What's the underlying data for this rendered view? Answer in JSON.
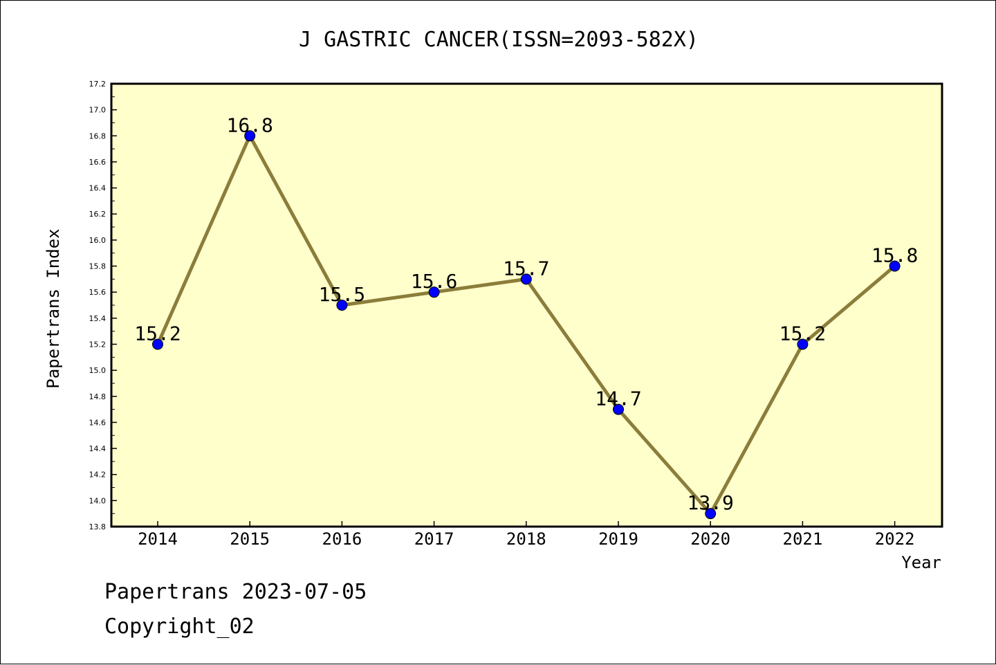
{
  "chart_data": {
    "type": "line",
    "title": "J GASTRIC CANCER(ISSN=2093-582X)",
    "xlabel": "Year",
    "ylabel": "Papertrans Index",
    "categories": [
      "2014",
      "2015",
      "2016",
      "2017",
      "2018",
      "2019",
      "2020",
      "2021",
      "2022"
    ],
    "series": [
      {
        "values": [
          15.2,
          16.8,
          15.5,
          15.6,
          15.7,
          14.7,
          13.9,
          15.2,
          15.8
        ]
      }
    ],
    "data_labels": [
      "15.2",
      "16.8",
      "15.5",
      "15.6",
      "15.7",
      "14.7",
      "13.9",
      "15.2",
      "15.8"
    ],
    "ylim": [
      13.8,
      17.2
    ],
    "y_ticks": [
      "13.8",
      "14.0",
      "14.2",
      "14.4",
      "14.6",
      "14.8",
      "15.0",
      "15.2",
      "15.4",
      "15.6",
      "15.8",
      "16.0",
      "16.2",
      "16.4",
      "16.6",
      "16.8",
      "17.0",
      "17.2"
    ],
    "grid": false,
    "legend": "none",
    "colors": {
      "plot_background": "#ffffcc",
      "line": "#8b7d3a",
      "marker": "#0000ff"
    }
  },
  "footer": {
    "line1": "Papertrans 2023-07-05",
    "line2": "Copyright_02"
  }
}
